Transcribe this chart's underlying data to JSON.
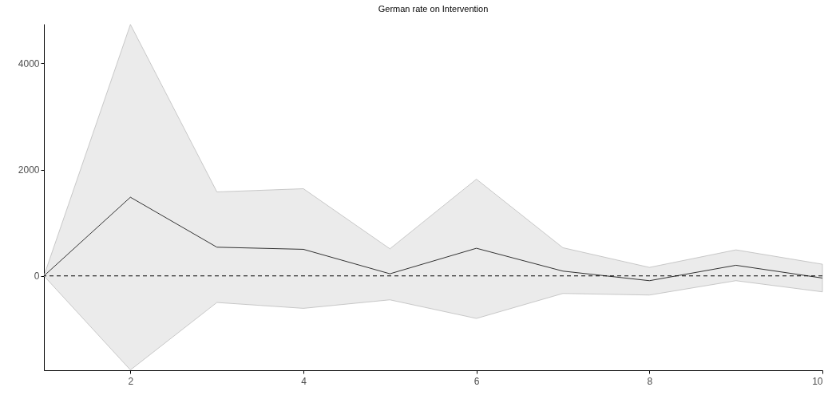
{
  "chart_data": {
    "type": "line",
    "title": "German rate on Intervention",
    "x": [
      1,
      2,
      3,
      4,
      5,
      6,
      7,
      8,
      9,
      10
    ],
    "series": [
      {
        "color": "#333333",
        "values": [
          0,
          1480,
          540,
          500,
          40,
          520,
          90,
          -90,
          200,
          -40
        ],
        "lower": [
          0,
          -1770,
          -500,
          -610,
          -450,
          -800,
          -330,
          -360,
          -90,
          -300
        ],
        "upper": [
          0,
          4730,
          1580,
          1640,
          510,
          1820,
          530,
          160,
          490,
          220
        ]
      }
    ],
    "xlim": [
      1,
      10
    ],
    "xticks": [
      2,
      4,
      6,
      8,
      10
    ],
    "ylim": [
      -1775,
      4740
    ],
    "yticks": [
      0,
      2000,
      4000
    ],
    "ref_lines": [
      {
        "axis": "y",
        "value": 0,
        "line_style": "dashed",
        "color": "#000000"
      }
    ],
    "grid": false,
    "line_style": "solid",
    "marker": "none"
  }
}
